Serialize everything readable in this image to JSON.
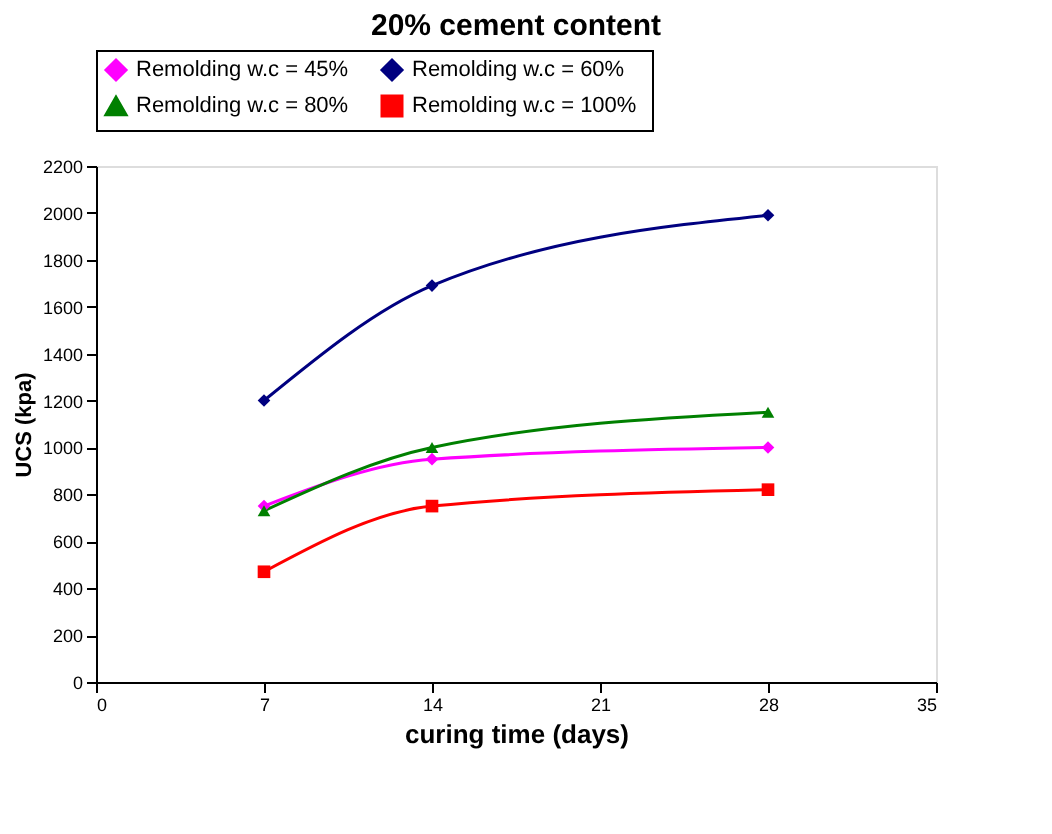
{
  "chart_data": {
    "type": "line",
    "title": "20% cement content",
    "xlabel": "curing time (days)",
    "ylabel": "UCS (kpa)",
    "x": [
      7,
      14,
      28
    ],
    "series": [
      {
        "name": "Remolding w.c =  45%",
        "color": "#ff00ff",
        "marker": "diamond",
        "values": [
          750,
          950,
          1000
        ]
      },
      {
        "name": "Remolding w.c =  60%",
        "color": "#000080",
        "marker": "diamond",
        "values": [
          1200,
          1690,
          1990
        ]
      },
      {
        "name": "Remolding w.c =  80%",
        "color": "#008000",
        "marker": "triangle",
        "values": [
          730,
          1000,
          1150
        ]
      },
      {
        "name": "Remolding w.c =  100%",
        "color": "#ff0000",
        "marker": "square",
        "values": [
          470,
          750,
          820
        ]
      }
    ],
    "xlim": [
      0,
      35
    ],
    "xticks": [
      0,
      7,
      14,
      21,
      28,
      35
    ],
    "ylim": [
      0,
      2200
    ],
    "yticks": [
      0,
      200,
      400,
      600,
      800,
      1000,
      1200,
      1400,
      1600,
      1800,
      2000,
      2200
    ],
    "grid": false,
    "legend": "top",
    "line_style": "solid"
  }
}
